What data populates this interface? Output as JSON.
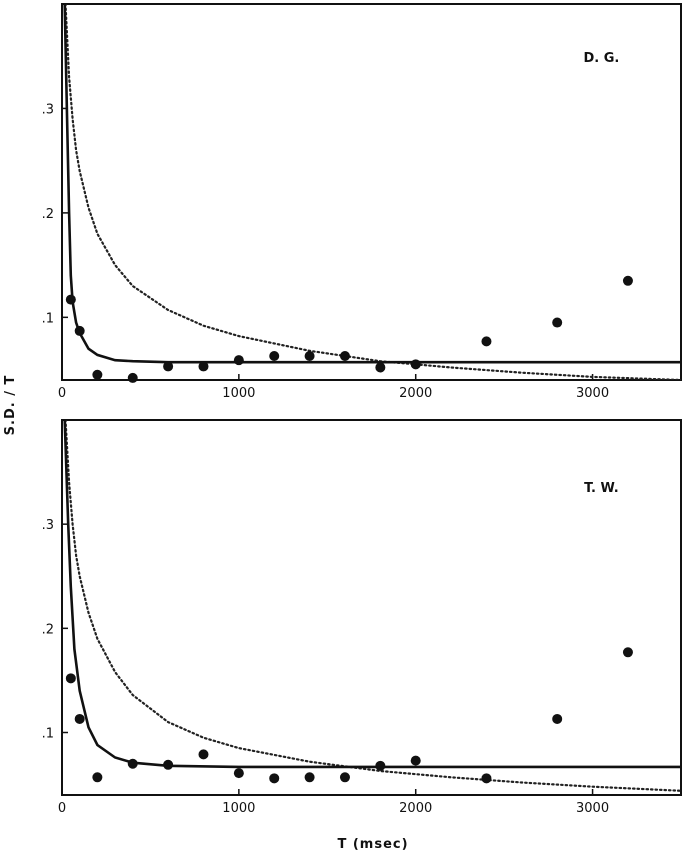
{
  "chart_data": [
    {
      "type": "scatter",
      "panel_label": "D. G.",
      "xlabel": "",
      "ylabel": "S.D. / T",
      "xlim": [
        0,
        3500
      ],
      "ylim": [
        0.04,
        0.4
      ],
      "x_ticks": [
        {
          "v": 0,
          "label": "0"
        },
        {
          "v": 1000,
          "label": "1000"
        },
        {
          "v": 2000,
          "label": "2000"
        },
        {
          "v": 3000,
          "label": "3000"
        }
      ],
      "y_ticks": [
        {
          "v": 0.1,
          "label": ".1"
        },
        {
          "v": 0.2,
          "label": ".2"
        },
        {
          "v": 0.3,
          "label": ".3"
        }
      ],
      "points": [
        {
          "x": 50,
          "y": 0.117
        },
        {
          "x": 100,
          "y": 0.087
        },
        {
          "x": 200,
          "y": 0.045
        },
        {
          "x": 400,
          "y": 0.042
        },
        {
          "x": 600,
          "y": 0.053
        },
        {
          "x": 800,
          "y": 0.053
        },
        {
          "x": 1000,
          "y": 0.059
        },
        {
          "x": 1200,
          "y": 0.063
        },
        {
          "x": 1400,
          "y": 0.063
        },
        {
          "x": 1600,
          "y": 0.063
        },
        {
          "x": 1800,
          "y": 0.052
        },
        {
          "x": 2000,
          "y": 0.055
        },
        {
          "x": 2400,
          "y": 0.077
        },
        {
          "x": 2800,
          "y": 0.095
        },
        {
          "x": 3200,
          "y": 0.135
        }
      ],
      "solid_curve": [
        {
          "x": 15,
          "y": 0.4
        },
        {
          "x": 30,
          "y": 0.28
        },
        {
          "x": 40,
          "y": 0.2
        },
        {
          "x": 50,
          "y": 0.14
        },
        {
          "x": 60,
          "y": 0.115
        },
        {
          "x": 80,
          "y": 0.095
        },
        {
          "x": 100,
          "y": 0.085
        },
        {
          "x": 150,
          "y": 0.07
        },
        {
          "x": 200,
          "y": 0.064
        },
        {
          "x": 300,
          "y": 0.059
        },
        {
          "x": 400,
          "y": 0.058
        },
        {
          "x": 600,
          "y": 0.057
        },
        {
          "x": 1000,
          "y": 0.057
        },
        {
          "x": 2000,
          "y": 0.057
        },
        {
          "x": 3500,
          "y": 0.057
        }
      ],
      "dotted_curve": [
        {
          "x": 20,
          "y": 0.4
        },
        {
          "x": 40,
          "y": 0.33
        },
        {
          "x": 60,
          "y": 0.29
        },
        {
          "x": 80,
          "y": 0.26
        },
        {
          "x": 100,
          "y": 0.24
        },
        {
          "x": 150,
          "y": 0.205
        },
        {
          "x": 200,
          "y": 0.18
        },
        {
          "x": 300,
          "y": 0.15
        },
        {
          "x": 400,
          "y": 0.13
        },
        {
          "x": 600,
          "y": 0.107
        },
        {
          "x": 800,
          "y": 0.092
        },
        {
          "x": 1000,
          "y": 0.082
        },
        {
          "x": 1400,
          "y": 0.068
        },
        {
          "x": 1800,
          "y": 0.058
        },
        {
          "x": 2200,
          "y": 0.052
        },
        {
          "x": 2600,
          "y": 0.047
        },
        {
          "x": 3000,
          "y": 0.043
        },
        {
          "x": 3500,
          "y": 0.04
        }
      ],
      "grid": false
    },
    {
      "type": "scatter",
      "panel_label": "T. W.",
      "xlabel": "T (msec)",
      "ylabel": "S.D. / T",
      "xlim": [
        0,
        3500
      ],
      "ylim": [
        0.04,
        0.4
      ],
      "x_ticks": [
        {
          "v": 0,
          "label": "0"
        },
        {
          "v": 1000,
          "label": "1000"
        },
        {
          "v": 2000,
          "label": "2000"
        },
        {
          "v": 3000,
          "label": "3000"
        }
      ],
      "y_ticks": [
        {
          "v": 0.1,
          "label": ".1"
        },
        {
          "v": 0.2,
          "label": ".2"
        },
        {
          "v": 0.3,
          "label": ".3"
        }
      ],
      "points": [
        {
          "x": 50,
          "y": 0.152
        },
        {
          "x": 100,
          "y": 0.113
        },
        {
          "x": 200,
          "y": 0.057
        },
        {
          "x": 400,
          "y": 0.07
        },
        {
          "x": 600,
          "y": 0.069
        },
        {
          "x": 800,
          "y": 0.079
        },
        {
          "x": 1000,
          "y": 0.061
        },
        {
          "x": 1200,
          "y": 0.056
        },
        {
          "x": 1400,
          "y": 0.057
        },
        {
          "x": 1600,
          "y": 0.057
        },
        {
          "x": 1800,
          "y": 0.068
        },
        {
          "x": 2000,
          "y": 0.073
        },
        {
          "x": 2400,
          "y": 0.056
        },
        {
          "x": 2800,
          "y": 0.113
        },
        {
          "x": 3200,
          "y": 0.177
        }
      ],
      "solid_curve": [
        {
          "x": 15,
          "y": 0.4
        },
        {
          "x": 35,
          "y": 0.3
        },
        {
          "x": 50,
          "y": 0.24
        },
        {
          "x": 70,
          "y": 0.18
        },
        {
          "x": 100,
          "y": 0.14
        },
        {
          "x": 150,
          "y": 0.105
        },
        {
          "x": 200,
          "y": 0.088
        },
        {
          "x": 300,
          "y": 0.076
        },
        {
          "x": 400,
          "y": 0.071
        },
        {
          "x": 600,
          "y": 0.068
        },
        {
          "x": 1000,
          "y": 0.067
        },
        {
          "x": 2000,
          "y": 0.067
        },
        {
          "x": 3500,
          "y": 0.067
        }
      ],
      "dotted_curve": [
        {
          "x": 20,
          "y": 0.4
        },
        {
          "x": 40,
          "y": 0.34
        },
        {
          "x": 60,
          "y": 0.3
        },
        {
          "x": 80,
          "y": 0.27
        },
        {
          "x": 100,
          "y": 0.25
        },
        {
          "x": 150,
          "y": 0.215
        },
        {
          "x": 200,
          "y": 0.19
        },
        {
          "x": 300,
          "y": 0.158
        },
        {
          "x": 400,
          "y": 0.136
        },
        {
          "x": 600,
          "y": 0.11
        },
        {
          "x": 800,
          "y": 0.095
        },
        {
          "x": 1000,
          "y": 0.085
        },
        {
          "x": 1400,
          "y": 0.072
        },
        {
          "x": 1800,
          "y": 0.063
        },
        {
          "x": 2200,
          "y": 0.057
        },
        {
          "x": 2600,
          "y": 0.052
        },
        {
          "x": 3000,
          "y": 0.048
        },
        {
          "x": 3500,
          "y": 0.044
        }
      ],
      "grid": false
    }
  ],
  "shared_ylabel": "S.D. / T",
  "shared_xlabel": "T (msec)"
}
